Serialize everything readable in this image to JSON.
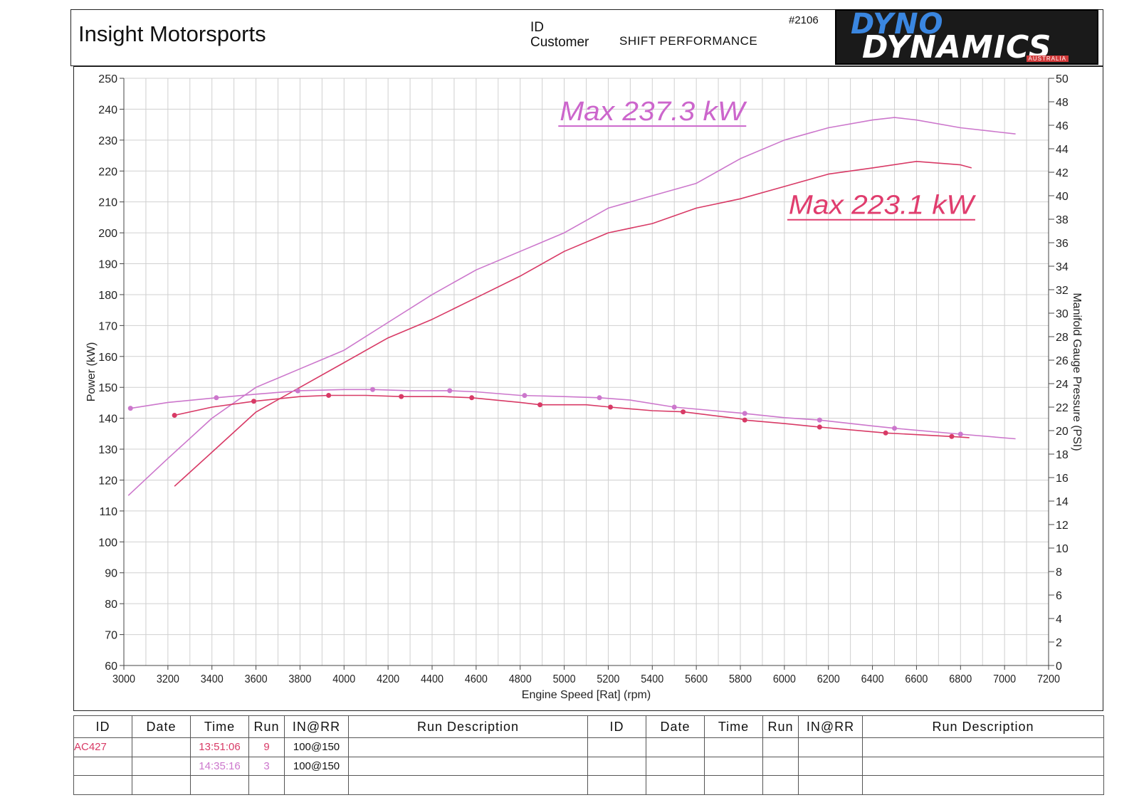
{
  "header": {
    "title": "Insight Motorsports",
    "id_label": "ID",
    "customer_label": "Customer",
    "customer_value": "SHIFT PERFORMANCE",
    "ref": "#2106",
    "logo_line1": "DYNO",
    "logo_line2": "DYNAMICS",
    "logo_sub": "AUSTRALIA"
  },
  "colors": {
    "run1": "#d83a66",
    "run2": "#cc77cc",
    "grid": "#d0d0d0"
  },
  "annotations": [
    {
      "text": "Max 237.3 kW",
      "x": 5400,
      "y": 237.3,
      "color": "#cc66cc"
    },
    {
      "text": "Max 223.1 kW",
      "x": 6440,
      "y": 207,
      "color": "#e03d6e"
    }
  ],
  "chart_data": {
    "type": "line",
    "xlabel": "Engine Speed [Rat] (rpm)",
    "ylabel": "Power (kW)",
    "y2label": "Manifold Gauge Pressure (PSI)",
    "xlim": [
      3000,
      7200
    ],
    "ylim": [
      60,
      250
    ],
    "y2lim": [
      0,
      50
    ],
    "xticks": [
      3000,
      3200,
      3400,
      3600,
      3800,
      4000,
      4200,
      4400,
      4600,
      4800,
      5000,
      5200,
      5400,
      5600,
      5800,
      6000,
      6200,
      6400,
      6600,
      6800,
      7000,
      7200
    ],
    "yticks": [
      60,
      70,
      80,
      90,
      100,
      110,
      120,
      130,
      140,
      150,
      160,
      170,
      180,
      190,
      200,
      210,
      220,
      230,
      240,
      250
    ],
    "y2ticks": [
      0,
      2,
      4,
      6,
      8,
      10,
      12,
      14,
      16,
      18,
      20,
      22,
      24,
      26,
      28,
      30,
      32,
      34,
      36,
      38,
      40,
      42,
      44,
      46,
      48,
      50
    ],
    "grid": true,
    "series": [
      {
        "axis": "left",
        "color": "#cc77cc",
        "x": [
          3020,
          3200,
          3400,
          3600,
          3800,
          4000,
          4200,
          4400,
          4600,
          4800,
          5000,
          5200,
          5400,
          5600,
          5800,
          6000,
          6200,
          6400,
          6500,
          6600,
          6800,
          7050
        ],
        "y": [
          115,
          127,
          140,
          150,
          156,
          162,
          171,
          180,
          188,
          194,
          200,
          208,
          212,
          216,
          224,
          230,
          234,
          236.5,
          237.3,
          236.5,
          234,
          232
        ]
      },
      {
        "axis": "left",
        "color": "#d83a66",
        "x": [
          3230,
          3400,
          3600,
          3800,
          4000,
          4200,
          4400,
          4600,
          4800,
          5000,
          5200,
          5400,
          5600,
          5800,
          6000,
          6200,
          6400,
          6600,
          6800,
          6850
        ],
        "y": [
          118,
          129,
          142,
          150,
          158,
          166,
          172,
          179,
          186,
          194,
          200,
          203,
          208,
          211,
          215,
          219,
          221,
          223.1,
          222,
          221
        ]
      },
      {
        "axis": "right",
        "color": "#cc77cc",
        "x": [
          3030,
          3200,
          3420,
          3600,
          3800,
          4000,
          4130,
          4300,
          4480,
          4600,
          4800,
          5000,
          5160,
          5300,
          5500,
          5800,
          6000,
          6160,
          6400,
          6500,
          6800,
          7050
        ],
        "y": [
          21.9,
          22.4,
          22.8,
          23.1,
          23.4,
          23.5,
          23.5,
          23.4,
          23.4,
          23.3,
          23.0,
          22.9,
          22.8,
          22.6,
          22.0,
          21.5,
          21.1,
          20.9,
          20.4,
          20.2,
          19.7,
          19.3
        ]
      },
      {
        "axis": "right",
        "color": "#d83a66",
        "x": [
          3230,
          3400,
          3590,
          3800,
          3930,
          4100,
          4260,
          4450,
          4580,
          4800,
          4890,
          5100,
          5210,
          5400,
          5540,
          5800,
          5820,
          6000,
          6160,
          6400,
          6460,
          6760,
          6840
        ],
        "y": [
          21.3,
          22.0,
          22.5,
          22.9,
          23.0,
          23.0,
          22.9,
          22.9,
          22.8,
          22.4,
          22.2,
          22.2,
          22.0,
          21.7,
          21.6,
          21.0,
          20.9,
          20.6,
          20.3,
          19.9,
          19.8,
          19.5,
          19.4
        ]
      }
    ],
    "markers": [
      {
        "series": 2,
        "x": [
          3030,
          3420,
          3790,
          4130,
          4480,
          4820,
          5160,
          5500,
          5820,
          6160,
          6500,
          6800
        ]
      },
      {
        "series": 3,
        "x": [
          3230,
          3590,
          3930,
          4260,
          4580,
          4890,
          5210,
          5540,
          5820,
          6160,
          6460,
          6760
        ]
      }
    ]
  },
  "table": {
    "headers": [
      "ID",
      "Date",
      "Time",
      "Run",
      "IN@RR",
      "Run Description",
      "ID",
      "Date",
      "Time",
      "Run",
      "IN@RR",
      "Run Description"
    ],
    "rows": [
      {
        "id": "AC427",
        "date": "",
        "time": "13:51:06",
        "run": "9",
        "inrr": "100@150",
        "desc": "",
        "id_color": "#d83a66",
        "time_color": "#d83a66"
      },
      {
        "id": "",
        "date": "",
        "time": "14:35:16",
        "run": "3",
        "inrr": "100@150",
        "desc": "",
        "id_color": "#cc77cc",
        "time_color": "#cc77cc"
      },
      {
        "id": "",
        "date": "",
        "time": "",
        "run": "",
        "inrr": "",
        "desc": ""
      }
    ]
  }
}
